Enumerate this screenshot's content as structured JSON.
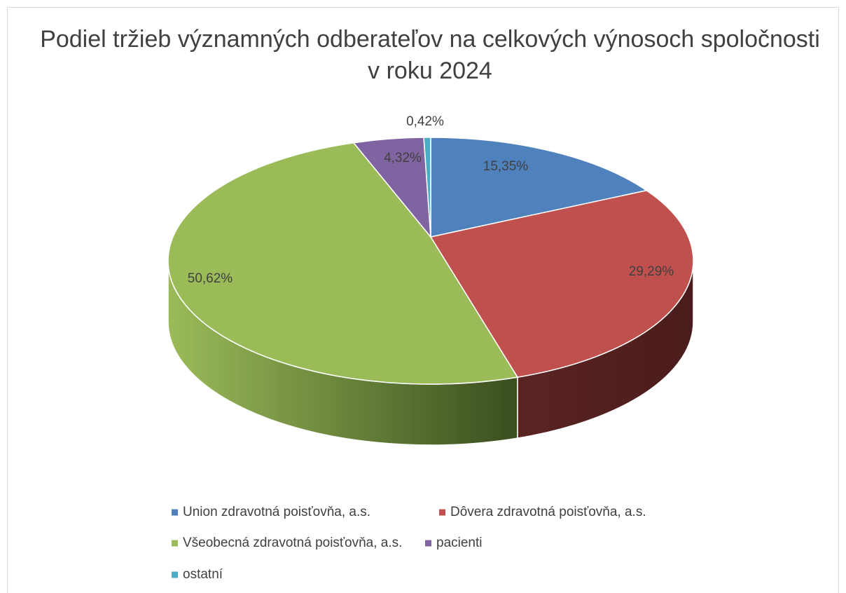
{
  "chart_data": {
    "type": "pie3d",
    "title": "Podiel tržieb významných odberateľov na celkových výnosoch spoločnosti v roku 2024",
    "categories": [
      "Union zdravotná poisťovňa, a.s.",
      "Dôvera zdravotná poisťovňa, a.s.",
      "Všeobecná zdravotná poisťovňa, a.s.",
      "pacienti",
      "ostatní"
    ],
    "values": [
      15.35,
      29.29,
      50.62,
      4.32,
      0.42
    ],
    "value_labels": [
      "15,35%",
      "29,29%",
      "50,62%",
      "4,32%",
      "0,42%"
    ],
    "colors": [
      "#4f81bd",
      "#c0504d",
      "#9bbb59",
      "#8064a2",
      "#4bacc6"
    ],
    "legend": "bottom"
  }
}
